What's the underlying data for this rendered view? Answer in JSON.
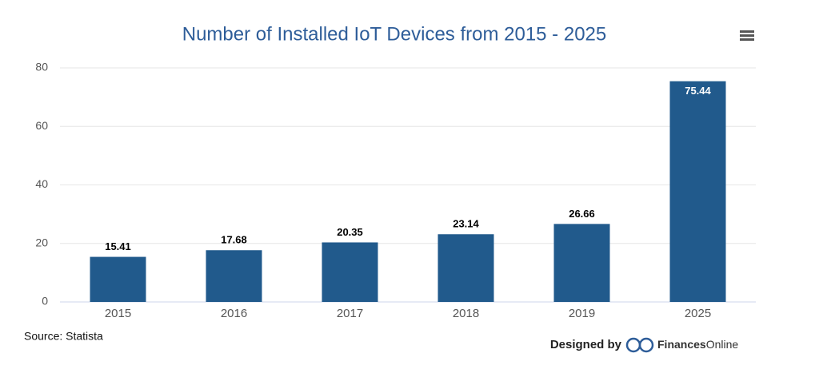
{
  "chart_data": {
    "type": "bar",
    "title": "Number of Installed IoT Devices from 2015 - 2025",
    "categories": [
      "2015",
      "2016",
      "2017",
      "2018",
      "2019",
      "2025"
    ],
    "values": [
      15.41,
      17.68,
      20.35,
      23.14,
      26.66,
      75.44
    ],
    "color": "#215a8c",
    "ylim": [
      0,
      80
    ],
    "yticks": [
      0,
      20,
      40,
      60,
      80
    ],
    "grid": true,
    "source": "Source: Statista",
    "credit": {
      "prefix": "Designed by",
      "brand_bold": "Finances",
      "brand_light": "Online"
    }
  }
}
